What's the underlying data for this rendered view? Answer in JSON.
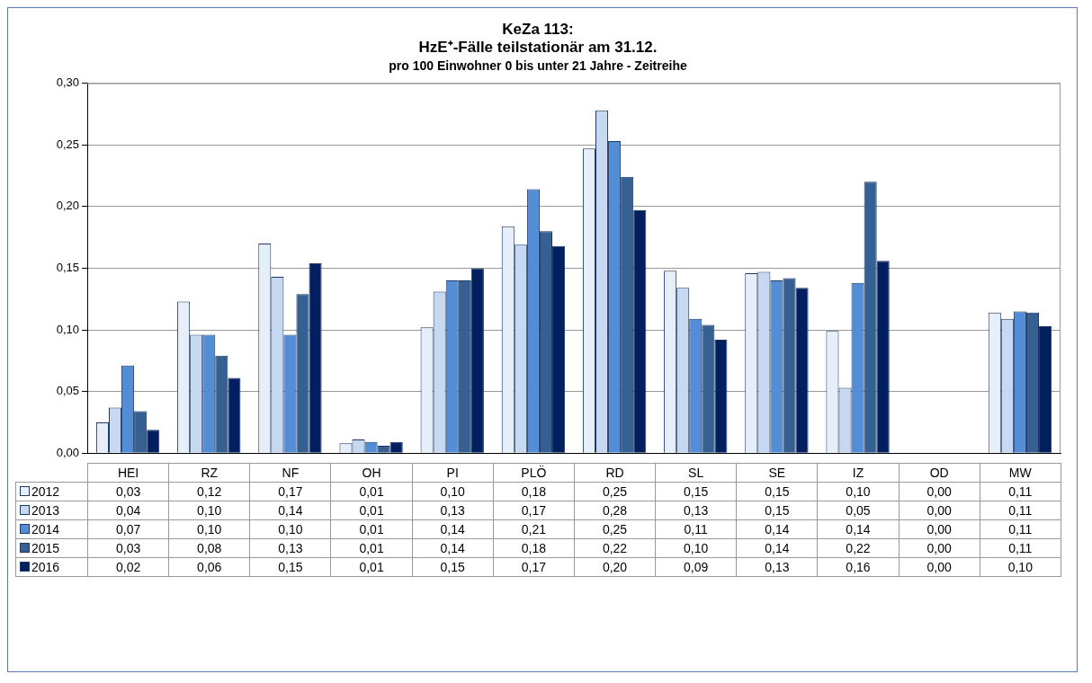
{
  "chart_data": {
    "type": "bar",
    "title": "KeZa 113:\nHzE⁺-Fälle teilstationär am 31.12.",
    "subtitle": "pro 100 Einwohner 0 bis unter 21 Jahre - Zeitreihe",
    "categories": [
      "HEI",
      "RZ",
      "NF",
      "OH",
      "PI",
      "PLÖ",
      "RD",
      "SL",
      "SE",
      "IZ",
      "OD",
      "MW"
    ],
    "series": [
      {
        "name": "2012",
        "color": "#e6eef9",
        "values": [
          0.025,
          0.123,
          0.17,
          0.008,
          0.102,
          0.184,
          0.247,
          0.148,
          0.146,
          0.099,
          0,
          0.114
        ],
        "value_labels": [
          "0,03",
          "0,12",
          "0,17",
          "0,01",
          "0,10",
          "0,18",
          "0,25",
          "0,15",
          "0,15",
          "0,10",
          "0,00",
          "0,11"
        ]
      },
      {
        "name": "2013",
        "color": "#c6d9f0",
        "values": [
          0.037,
          0.096,
          0.143,
          0.011,
          0.131,
          0.169,
          0.278,
          0.134,
          0.147,
          0.053,
          0,
          0.109
        ],
        "value_labels": [
          "0,04",
          "0,10",
          "0,14",
          "0,01",
          "0,13",
          "0,17",
          "0,28",
          "0,13",
          "0,15",
          "0,05",
          "0,00",
          "0,11"
        ]
      },
      {
        "name": "2014",
        "color": "#538dd5",
        "values": [
          0.071,
          0.096,
          0.096,
          0.009,
          0.14,
          0.214,
          0.253,
          0.109,
          0.14,
          0.138,
          0,
          0.115
        ],
        "value_labels": [
          "0,07",
          "0,10",
          "0,10",
          "0,01",
          "0,14",
          "0,21",
          "0,25",
          "0,11",
          "0,14",
          "0,14",
          "0,00",
          "0,11"
        ]
      },
      {
        "name": "2015",
        "color": "#366092",
        "values": [
          0.034,
          0.079,
          0.129,
          0.006,
          0.14,
          0.18,
          0.224,
          0.104,
          0.142,
          0.22,
          0,
          0.114
        ],
        "value_labels": [
          "0,03",
          "0,08",
          "0,13",
          "0,01",
          "0,14",
          "0,18",
          "0,22",
          "0,10",
          "0,14",
          "0,22",
          "0,00",
          "0,11"
        ]
      },
      {
        "name": "2016",
        "color": "#022060",
        "values": [
          0.019,
          0.061,
          0.154,
          0.009,
          0.15,
          0.168,
          0.197,
          0.092,
          0.134,
          0.156,
          0,
          0.103
        ],
        "value_labels": [
          "0,02",
          "0,06",
          "0,15",
          "0,01",
          "0,15",
          "0,17",
          "0,20",
          "0,09",
          "0,13",
          "0,16",
          "0,00",
          "0,10"
        ]
      }
    ],
    "ylim": [
      0,
      0.3
    ],
    "yticks": [
      {
        "value": 0,
        "label": "0,00"
      },
      {
        "value": 0.05,
        "label": "0,05"
      },
      {
        "value": 0.1,
        "label": "0,10"
      },
      {
        "value": 0.15,
        "label": "0,15"
      },
      {
        "value": 0.2,
        "label": "0,20"
      },
      {
        "value": 0.25,
        "label": "0,25"
      },
      {
        "value": 0.3,
        "label": "0,30"
      }
    ],
    "grid": "y",
    "legend": "bottom"
  }
}
